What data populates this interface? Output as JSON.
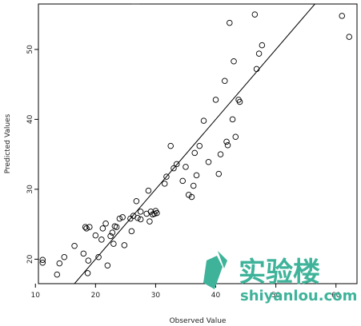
{
  "chart_data": {
    "type": "scatter",
    "title": "",
    "xlabel": "Observed Value",
    "ylabel": "Predicted Values",
    "xlim": [
      10.5,
      63.5
    ],
    "ylim": [
      16.5,
      56.5
    ],
    "x_ticks": [
      10,
      20,
      30,
      40,
      50,
      60
    ],
    "y_ticks": [
      20,
      30,
      40,
      50
    ],
    "grid": false,
    "legend": "none",
    "points": [
      {
        "x": 11.2,
        "y": 19.9
      },
      {
        "x": 11.2,
        "y": 19.5
      },
      {
        "x": 13.6,
        "y": 17.8
      },
      {
        "x": 14.0,
        "y": 19.4
      },
      {
        "x": 14.8,
        "y": 20.3
      },
      {
        "x": 16.5,
        "y": 21.9
      },
      {
        "x": 18.0,
        "y": 20.8
      },
      {
        "x": 18.3,
        "y": 24.6
      },
      {
        "x": 18.5,
        "y": 24.4
      },
      {
        "x": 18.7,
        "y": 18.0
      },
      {
        "x": 18.8,
        "y": 19.8
      },
      {
        "x": 19.0,
        "y": 24.6
      },
      {
        "x": 20.0,
        "y": 23.4
      },
      {
        "x": 20.5,
        "y": 20.3
      },
      {
        "x": 21.0,
        "y": 22.8
      },
      {
        "x": 21.2,
        "y": 24.4
      },
      {
        "x": 21.7,
        "y": 25.1
      },
      {
        "x": 22.0,
        "y": 19.1
      },
      {
        "x": 22.5,
        "y": 23.3
      },
      {
        "x": 22.8,
        "y": 23.8
      },
      {
        "x": 23.0,
        "y": 22.2
      },
      {
        "x": 23.2,
        "y": 24.7
      },
      {
        "x": 23.5,
        "y": 24.6
      },
      {
        "x": 24.0,
        "y": 25.8
      },
      {
        "x": 24.5,
        "y": 26.0
      },
      {
        "x": 24.8,
        "y": 22.0
      },
      {
        "x": 25.8,
        "y": 25.8
      },
      {
        "x": 26.0,
        "y": 24.0
      },
      {
        "x": 26.3,
        "y": 26.2
      },
      {
        "x": 26.8,
        "y": 28.3
      },
      {
        "x": 27.0,
        "y": 25.9
      },
      {
        "x": 27.5,
        "y": 26.8
      },
      {
        "x": 27.5,
        "y": 25.7
      },
      {
        "x": 28.5,
        "y": 26.5
      },
      {
        "x": 28.8,
        "y": 29.8
      },
      {
        "x": 29.0,
        "y": 25.4
      },
      {
        "x": 29.2,
        "y": 26.8
      },
      {
        "x": 29.5,
        "y": 26.4
      },
      {
        "x": 29.8,
        "y": 26.5
      },
      {
        "x": 30.0,
        "y": 26.9
      },
      {
        "x": 30.2,
        "y": 26.6
      },
      {
        "x": 31.5,
        "y": 30.8
      },
      {
        "x": 31.8,
        "y": 31.8
      },
      {
        "x": 32.5,
        "y": 36.2
      },
      {
        "x": 33.0,
        "y": 33.0
      },
      {
        "x": 33.5,
        "y": 33.6
      },
      {
        "x": 34.5,
        "y": 31.2
      },
      {
        "x": 35.0,
        "y": 33.2
      },
      {
        "x": 35.5,
        "y": 29.2
      },
      {
        "x": 36.0,
        "y": 28.9
      },
      {
        "x": 36.3,
        "y": 30.5
      },
      {
        "x": 36.5,
        "y": 35.2
      },
      {
        "x": 36.8,
        "y": 32.0
      },
      {
        "x": 37.3,
        "y": 36.2
      },
      {
        "x": 38.0,
        "y": 39.8
      },
      {
        "x": 38.8,
        "y": 33.9
      },
      {
        "x": 40.0,
        "y": 42.8
      },
      {
        "x": 40.5,
        "y": 32.2
      },
      {
        "x": 40.8,
        "y": 35.0
      },
      {
        "x": 41.5,
        "y": 45.5
      },
      {
        "x": 41.8,
        "y": 36.8
      },
      {
        "x": 42.0,
        "y": 36.3
      },
      {
        "x": 42.3,
        "y": 53.8
      },
      {
        "x": 42.8,
        "y": 40.0
      },
      {
        "x": 43.0,
        "y": 48.3
      },
      {
        "x": 43.3,
        "y": 37.5
      },
      {
        "x": 43.8,
        "y": 42.8
      },
      {
        "x": 44.0,
        "y": 42.5
      },
      {
        "x": 46.5,
        "y": 55.0
      },
      {
        "x": 46.8,
        "y": 47.2
      },
      {
        "x": 47.2,
        "y": 49.4
      },
      {
        "x": 47.7,
        "y": 50.6
      },
      {
        "x": 61.0,
        "y": 54.8
      },
      {
        "x": 62.2,
        "y": 51.8
      }
    ],
    "reference_line": [
      {
        "x": 16.5,
        "y": 16.5
      },
      {
        "x": 56.5,
        "y": 56.5
      }
    ]
  },
  "watermark": {
    "text_cn": "实验楼",
    "text_en": "shiyanlou.com",
    "color": "#3fb39a"
  }
}
